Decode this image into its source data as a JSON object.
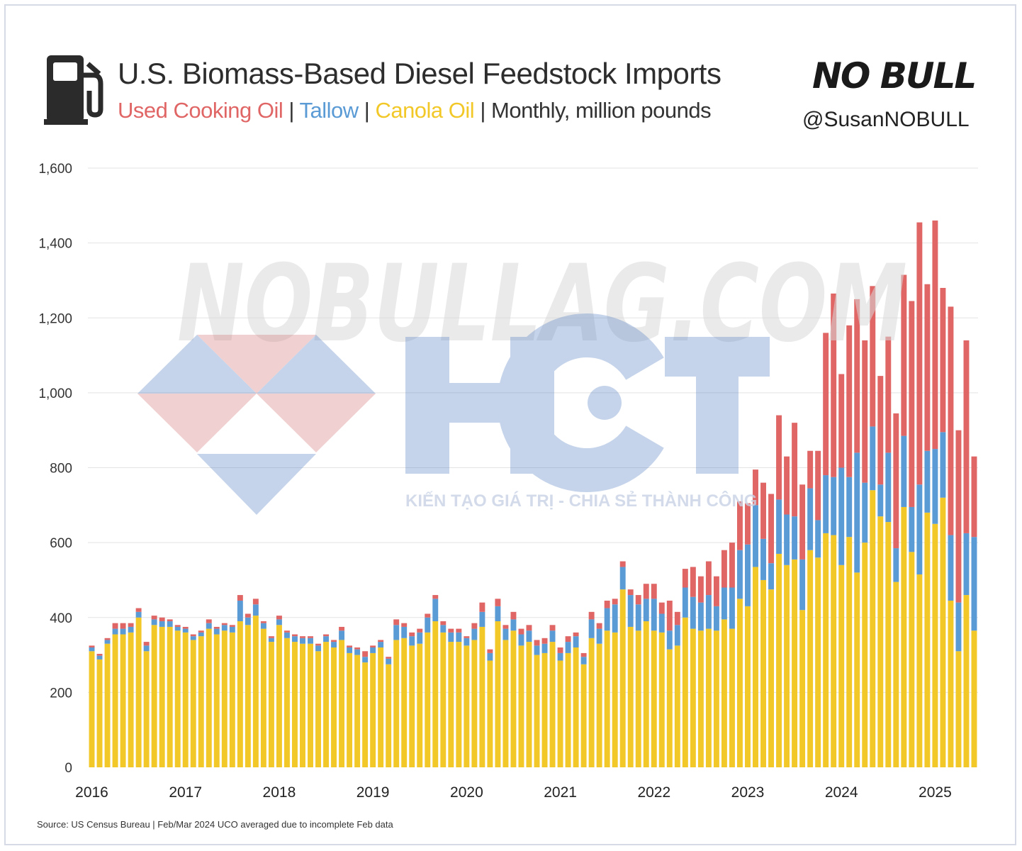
{
  "header": {
    "title": "U.S. Biomass-Based Diesel Feedstock Imports",
    "subtitle": {
      "uco": "Used Cooking Oil",
      "tallow": "Tallow",
      "canola": "Canola Oil",
      "tail": "Monthly, million pounds",
      "sep": "|"
    },
    "brand": "NO BULL",
    "handle": "@SusanNOBULL",
    "icon": "fuel-pump-icon"
  },
  "source": "Source: US Census Bureau | Feb/Mar 2024 UCO averaged due to incomplete Feb data",
  "watermark": {
    "text": "NOBULLAG.COM",
    "logo": "HCT",
    "tagline": "KIẾN TẠO GIÁ TRỊ - CHIA SẺ THÀNH CÔNG"
  },
  "colors": {
    "uco": "#e06666",
    "tallow": "#5b9bd5",
    "canola": "#f2c828",
    "grid": "#e3e3e3"
  },
  "chart_data": {
    "type": "bar",
    "stacked": true,
    "x_start": "2016-01",
    "xlabel": "",
    "ylabel": "",
    "ylim": [
      0,
      1600
    ],
    "yticks": [
      0,
      200,
      400,
      600,
      800,
      1000,
      1200,
      1400,
      1600
    ],
    "yticklabels": [
      "0",
      "200",
      "400",
      "600",
      "800",
      "1,000",
      "1,200",
      "1,400",
      "1,600"
    ],
    "xticklabels": [
      "2016",
      "2017",
      "2018",
      "2019",
      "2020",
      "2021",
      "2022",
      "2023",
      "2024",
      "2025"
    ],
    "grid": true,
    "series": [
      {
        "name": "Canola Oil",
        "color": "#f2c828",
        "values": [
          310,
          288,
          330,
          355,
          355,
          360,
          400,
          310,
          380,
          375,
          375,
          365,
          360,
          340,
          350,
          370,
          355,
          365,
          360,
          390,
          380,
          405,
          370,
          335,
          380,
          345,
          335,
          330,
          330,
          310,
          335,
          320,
          340,
          305,
          300,
          280,
          305,
          320,
          275,
          340,
          345,
          325,
          330,
          360,
          390,
          360,
          335,
          335,
          325,
          340,
          375,
          285,
          390,
          340,
          365,
          325,
          335,
          300,
          305,
          335,
          285,
          305,
          320,
          275,
          345,
          330,
          365,
          360,
          475,
          375,
          365,
          390,
          365,
          360,
          315,
          325,
          400,
          370,
          365,
          370,
          365,
          395,
          370,
          450,
          430,
          535,
          500,
          475,
          570,
          540,
          555,
          420,
          580,
          560,
          625,
          620,
          540,
          615,
          520,
          600,
          740,
          670,
          655,
          495,
          695,
          575,
          515,
          680,
          650,
          720,
          445,
          310,
          460,
          365
        ]
      },
      {
        "name": "Tallow",
        "color": "#5b9bd5",
        "values": [
          10,
          10,
          10,
          15,
          15,
          15,
          15,
          15,
          15,
          15,
          15,
          10,
          10,
          10,
          10,
          15,
          15,
          15,
          15,
          55,
          20,
          30,
          15,
          10,
          15,
          15,
          15,
          15,
          15,
          15,
          15,
          15,
          25,
          15,
          15,
          15,
          15,
          15,
          15,
          40,
          30,
          25,
          30,
          40,
          60,
          20,
          25,
          25,
          20,
          30,
          40,
          20,
          40,
          30,
          30,
          30,
          30,
          25,
          25,
          30,
          20,
          30,
          30,
          20,
          50,
          40,
          60,
          75,
          60,
          85,
          70,
          60,
          85,
          50,
          50,
          55,
          80,
          85,
          75,
          90,
          65,
          85,
          110,
          130,
          165,
          165,
          110,
          70,
          145,
          135,
          115,
          135,
          165,
          100,
          155,
          155,
          260,
          160,
          320,
          160,
          170,
          85,
          185,
          90,
          190,
          120,
          240,
          165,
          200,
          175,
          175,
          130,
          165,
          250
        ]
      },
      {
        "name": "Used Cooking Oil",
        "color": "#e06666",
        "values": [
          5,
          5,
          5,
          15,
          15,
          10,
          10,
          10,
          10,
          10,
          5,
          5,
          5,
          5,
          5,
          10,
          5,
          5,
          5,
          15,
          10,
          15,
          5,
          5,
          10,
          5,
          5,
          5,
          5,
          5,
          5,
          5,
          10,
          5,
          5,
          15,
          5,
          5,
          5,
          15,
          10,
          10,
          10,
          10,
          10,
          10,
          10,
          10,
          5,
          15,
          25,
          10,
          20,
          10,
          20,
          15,
          15,
          15,
          15,
          15,
          15,
          15,
          10,
          10,
          20,
          15,
          20,
          15,
          15,
          15,
          25,
          40,
          40,
          30,
          80,
          35,
          50,
          80,
          70,
          90,
          80,
          100,
          120,
          130,
          110,
          95,
          150,
          185,
          225,
          155,
          250,
          200,
          100,
          185,
          380,
          490,
          250,
          405,
          410,
          380,
          375,
          290,
          310,
          360,
          430,
          550,
          700,
          445,
          610,
          385,
          610,
          460,
          515,
          215
        ]
      }
    ]
  }
}
